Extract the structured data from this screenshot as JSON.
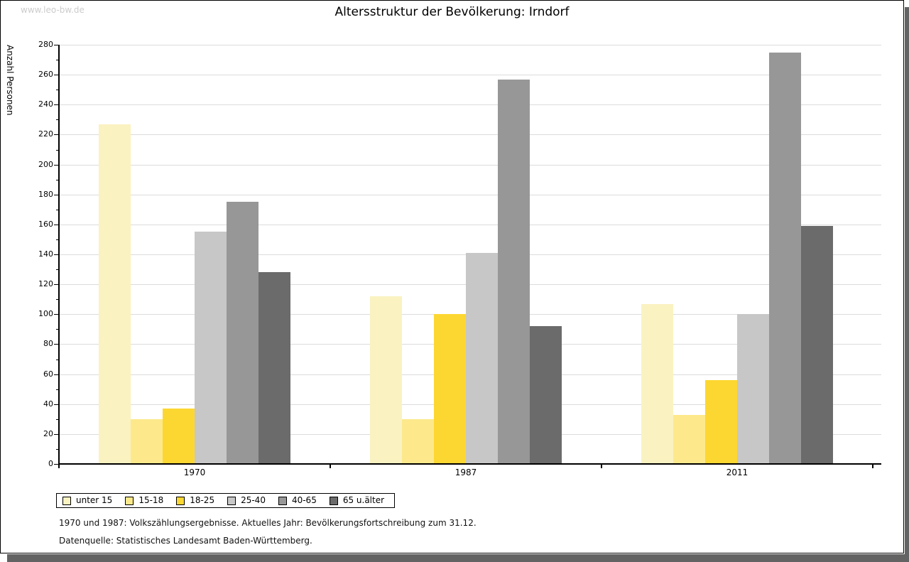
{
  "watermark": "www.leo-bw.de",
  "title": "Altersstruktur der Bevölkerung: Irndorf",
  "chart_data": {
    "type": "bar",
    "title": "Altersstruktur der Bevölkerung: Irndorf",
    "xlabel": "",
    "ylabel": "Anzahl Personen",
    "ylim": [
      0,
      280
    ],
    "ytick_step": 20,
    "grid": "horizontal-major",
    "legend_position": "bottom-left",
    "categories": [
      "1970",
      "1987",
      "2011"
    ],
    "series": [
      {
        "name": "unter 15",
        "color": "#faf2c1",
        "values": [
          227,
          112,
          107
        ]
      },
      {
        "name": "15-18",
        "color": "#fde98c",
        "values": [
          30,
          30,
          33
        ]
      },
      {
        "name": "18-25",
        "color": "#fdd731",
        "values": [
          37,
          100,
          56
        ]
      },
      {
        "name": "25-40",
        "color": "#c7c7c7",
        "values": [
          155,
          141,
          100
        ]
      },
      {
        "name": "40-65",
        "color": "#979797",
        "values": [
          175,
          257,
          275
        ]
      },
      {
        "name": "65 u.älter",
        "color": "#6b6b6b",
        "values": [
          128,
          92,
          159
        ]
      }
    ]
  },
  "footnotes": {
    "line1": "1970 und 1987: Volkszählungsergebnisse. Aktuelles Jahr: Bevölkerungsfortschreibung zum 31.12.",
    "line2": "Datenquelle: Statistisches Landesamt Baden-Württemberg."
  },
  "colors": {
    "shadow": "#636363",
    "grid": "#dcdcdc",
    "watermark": "#cccccc",
    "axis": "#000000",
    "background": "#ffffff"
  }
}
